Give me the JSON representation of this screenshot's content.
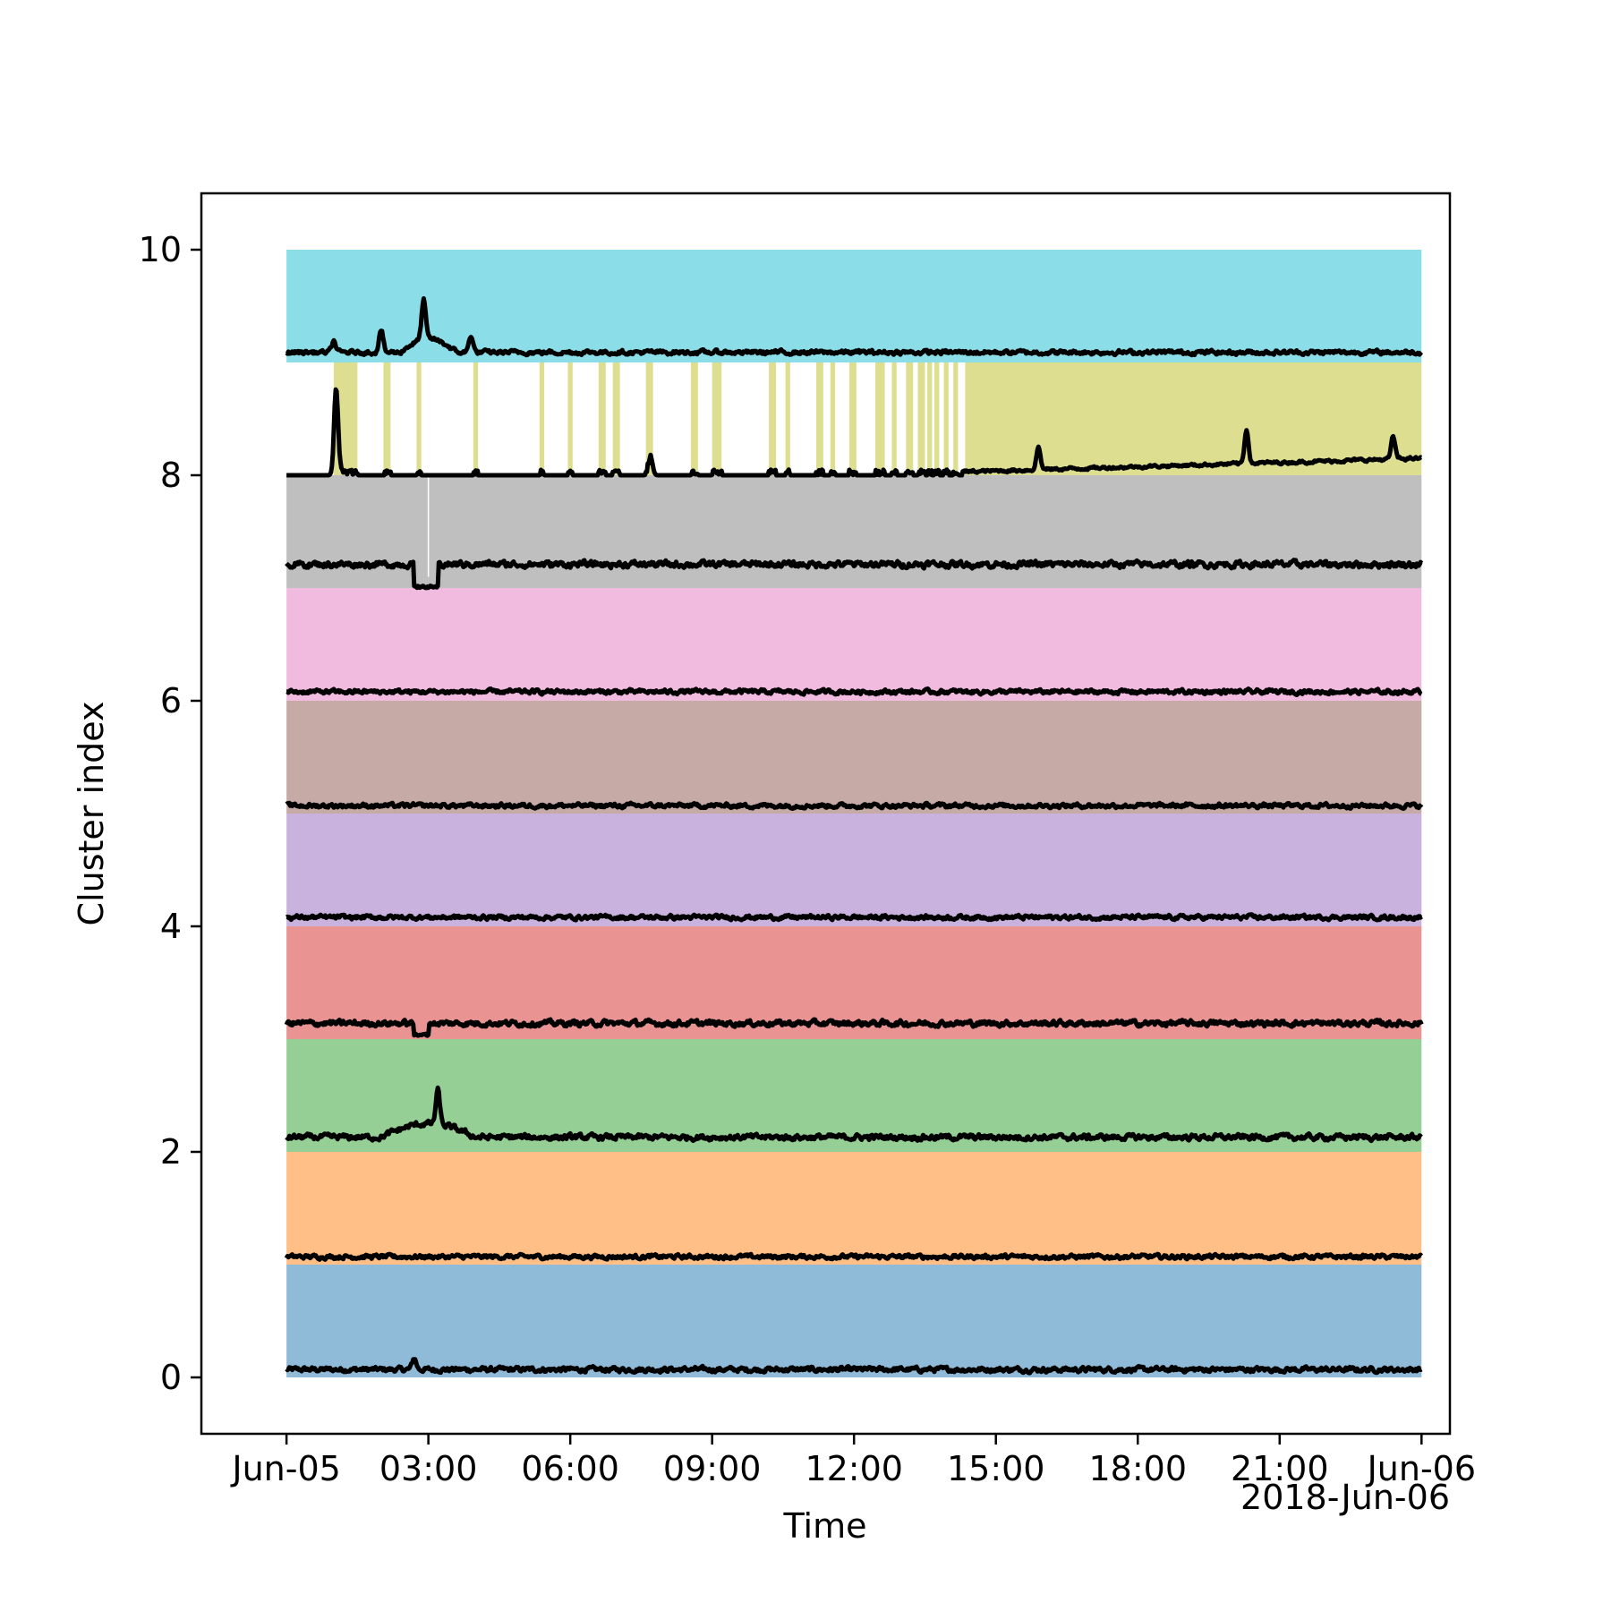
{
  "chart_data": {
    "type": "area",
    "title": "",
    "xlabel": "Time",
    "ylabel": "Cluster index",
    "x_offset_label": "2018-Jun-06",
    "xlim_hours": [
      -1.8,
      24.6
    ],
    "ylim": [
      -0.5,
      10.5
    ],
    "xticks": [
      {
        "hour": 0,
        "label": "Jun-05"
      },
      {
        "hour": 3,
        "label": "03:00"
      },
      {
        "hour": 6,
        "label": "06:00"
      },
      {
        "hour": 9,
        "label": "09:00"
      },
      {
        "hour": 12,
        "label": "12:00"
      },
      {
        "hour": 15,
        "label": "15:00"
      },
      {
        "hour": 18,
        "label": "18:00"
      },
      {
        "hour": 21,
        "label": "21:00"
      },
      {
        "hour": 24,
        "label": "Jun-06"
      }
    ],
    "yticks": [
      0,
      2,
      4,
      6,
      8,
      10
    ],
    "clusters": [
      {
        "index": 0,
        "color": "#1f77b4",
        "baseline": 0.07,
        "noise": 0.035
      },
      {
        "index": 1,
        "color": "#ff7f0e",
        "baseline": 0.07,
        "noise": 0.03
      },
      {
        "index": 2,
        "color": "#2ca02c",
        "baseline": 0.13,
        "noise": 0.04
      },
      {
        "index": 3,
        "color": "#d62728",
        "baseline": 0.14,
        "noise": 0.04
      },
      {
        "index": 4,
        "color": "#9467bd",
        "baseline": 0.08,
        "noise": 0.03
      },
      {
        "index": 5,
        "color": "#8c564b",
        "baseline": 0.07,
        "noise": 0.03
      },
      {
        "index": 6,
        "color": "#e377c2",
        "baseline": 0.08,
        "noise": 0.03
      },
      {
        "index": 7,
        "color": "#7f7f7f",
        "baseline": 0.21,
        "noise": 0.045
      },
      {
        "index": 8,
        "color": "#bcbd22",
        "baseline": 0.0,
        "noise": 0.0
      },
      {
        "index": 9,
        "color": "#17becf",
        "baseline": 0.09,
        "noise": 0.03
      }
    ],
    "cluster8_active_intervals_hours": [
      [
        1.0,
        1.5
      ],
      [
        2.05,
        2.2
      ],
      [
        2.75,
        2.85
      ],
      [
        3.95,
        4.05
      ],
      [
        5.35,
        5.45
      ],
      [
        5.95,
        6.05
      ],
      [
        6.6,
        6.75
      ],
      [
        6.9,
        7.05
      ],
      [
        7.6,
        7.75
      ],
      [
        8.55,
        8.7
      ],
      [
        9.0,
        9.2
      ],
      [
        10.2,
        10.35
      ],
      [
        10.55,
        10.65
      ],
      [
        11.2,
        11.35
      ],
      [
        11.5,
        11.6
      ],
      [
        11.9,
        12.05
      ],
      [
        12.45,
        12.65
      ],
      [
        12.8,
        12.9
      ],
      [
        13.1,
        13.25
      ],
      [
        13.35,
        13.5
      ],
      [
        13.55,
        13.65
      ],
      [
        13.7,
        13.8
      ],
      [
        13.9,
        14.0
      ],
      [
        14.1,
        14.2
      ],
      [
        14.35,
        24.0
      ]
    ],
    "cluster8_series_note": "0 when inactive; ~0.05-0.2 rising after 14:00",
    "spikes": [
      {
        "cluster": 9,
        "hour": 2.9,
        "height": 0.35
      },
      {
        "cluster": 9,
        "hour": 2.0,
        "height": 0.2
      },
      {
        "cluster": 9,
        "hour": 3.9,
        "height": 0.15
      },
      {
        "cluster": 9,
        "hour": 1.0,
        "height": 0.1
      },
      {
        "cluster": 8,
        "hour": 1.05,
        "height": 0.75
      },
      {
        "cluster": 8,
        "hour": 7.7,
        "height": 0.15
      },
      {
        "cluster": 8,
        "hour": 15.9,
        "height": 0.2
      },
      {
        "cluster": 8,
        "hour": 20.3,
        "height": 0.3
      },
      {
        "cluster": 8,
        "hour": 23.4,
        "height": 0.2
      },
      {
        "cluster": 2,
        "hour": 3.2,
        "height": 0.3
      },
      {
        "cluster": 0,
        "hour": 2.7,
        "height": 0.1
      }
    ],
    "dips": [
      {
        "cluster": 7,
        "hour_start": 2.7,
        "hour_end": 3.2,
        "value": 0.0
      },
      {
        "cluster": 3,
        "hour_start": 2.7,
        "hour_end": 3.0,
        "value": 0.03
      }
    ]
  }
}
